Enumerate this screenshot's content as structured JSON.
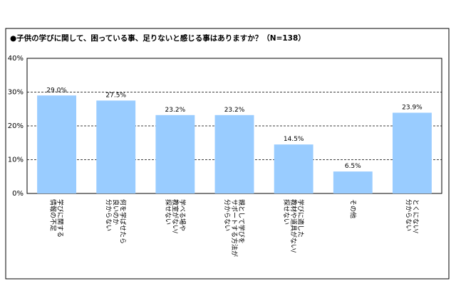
{
  "chart_data": {
    "type": "bar",
    "title": "●子供の学びに関して、困っている事、足りないと感じる事はありますか？（N=138）",
    "categories": [
      [
        "学びに関する",
        "情報の不足"
      ],
      [
        "何を学ばせたら",
        "良いのか",
        "分からない"
      ],
      [
        "学べる場や",
        "教室がない/",
        "探せない"
      ],
      [
        "親として学びを",
        "サポートする方法が",
        "分からない"
      ],
      [
        "学びに適した",
        "教材や道具がない/",
        "探せない"
      ],
      [
        "その他"
      ],
      [
        "とくにない/",
        "分からない"
      ]
    ],
    "values": [
      29.0,
      27.5,
      23.2,
      23.2,
      14.5,
      6.5,
      23.9
    ],
    "value_labels": [
      "29.0%",
      "27.5%",
      "23.2%",
      "23.2%",
      "14.5%",
      "6.5%",
      "23.9%"
    ],
    "color": "#99ccff",
    "ylim": [
      0,
      40
    ],
    "yticks": [
      {
        "value": 0,
        "label": "0%"
      },
      {
        "value": 10,
        "label": "10%"
      },
      {
        "value": 20,
        "label": "20%"
      },
      {
        "value": 30,
        "label": "30%"
      },
      {
        "value": 40,
        "label": "40%"
      }
    ],
    "grid": true
  }
}
